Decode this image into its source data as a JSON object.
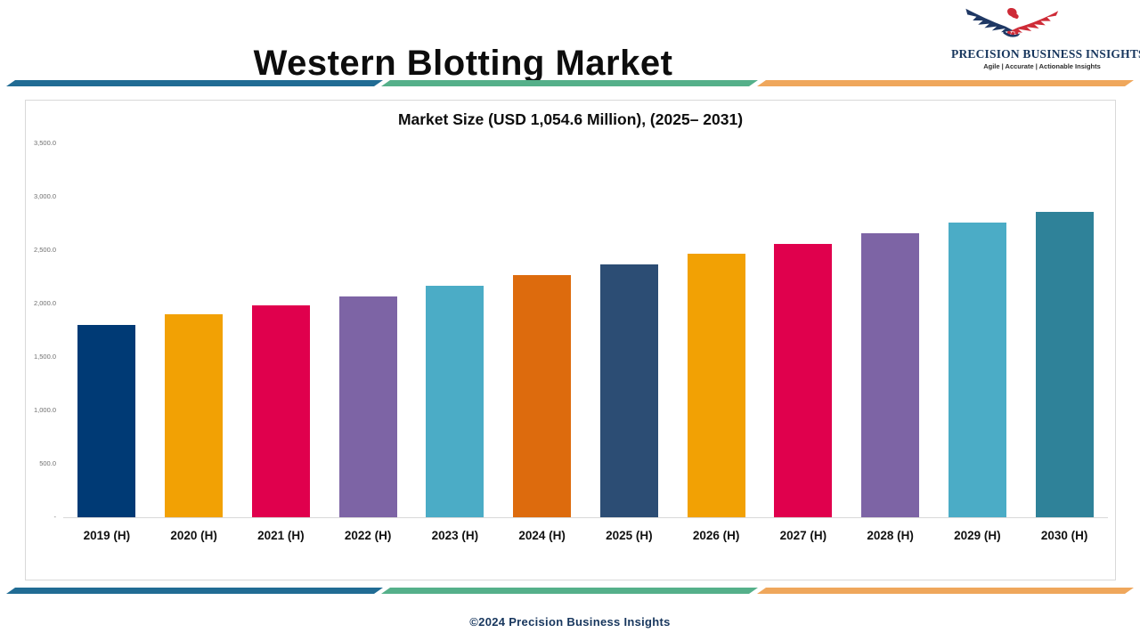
{
  "header": {
    "title": "Western Blotting Market"
  },
  "logo": {
    "name": "PRECISION BUSINESS INSIGHTS",
    "tagline": "Agile | Accurate | Actionable Insights",
    "eagle_navy": "#1F3864",
    "eagle_red": "#CE2B37"
  },
  "footer": {
    "copyright": "©2024 Precision Business Insights"
  },
  "colors": {
    "divider_blue": "#216C94",
    "divider_green": "#55B08A",
    "divider_orange": "#EFA75C",
    "panel_border": "#d9d9d9",
    "axis_text": "#6f6f6f",
    "navy_text": "#17365D"
  },
  "chart_data": {
    "type": "bar",
    "title": "Market Size (USD 1,054.6 Million), (2025– 2031)",
    "categories": [
      "2019 (H)",
      "2020 (H)",
      "2021 (H)",
      "2022 (H)",
      "2023 (H)",
      "2024 (H)",
      "2025 (H)",
      "2026 (H)",
      "2027 (H)",
      "2028 (H)",
      "2029 (H)",
      "2030 (H)"
    ],
    "values": [
      1800,
      1900,
      1985,
      2070,
      2170,
      2270,
      2370,
      2465,
      2560,
      2655,
      2755,
      2855
    ],
    "bar_colors": [
      "#003A75",
      "#F2A104",
      "#E0004D",
      "#7D64A5",
      "#4BACC6",
      "#DD6B0D",
      "#2C4D74",
      "#F2A104",
      "#E0004D",
      "#7D64A5",
      "#4BACC6",
      "#2F8299"
    ],
    "xlabel": "",
    "ylabel": "",
    "ylim": [
      0,
      3500
    ],
    "ytick_step": 500,
    "ytick_labels": [
      "-",
      "500.0",
      "1,000.0",
      "1,500.0",
      "2,000.0",
      "2,500.0",
      "3,000.0",
      "3,500.0"
    ],
    "grid": false,
    "legend_position": "none"
  }
}
